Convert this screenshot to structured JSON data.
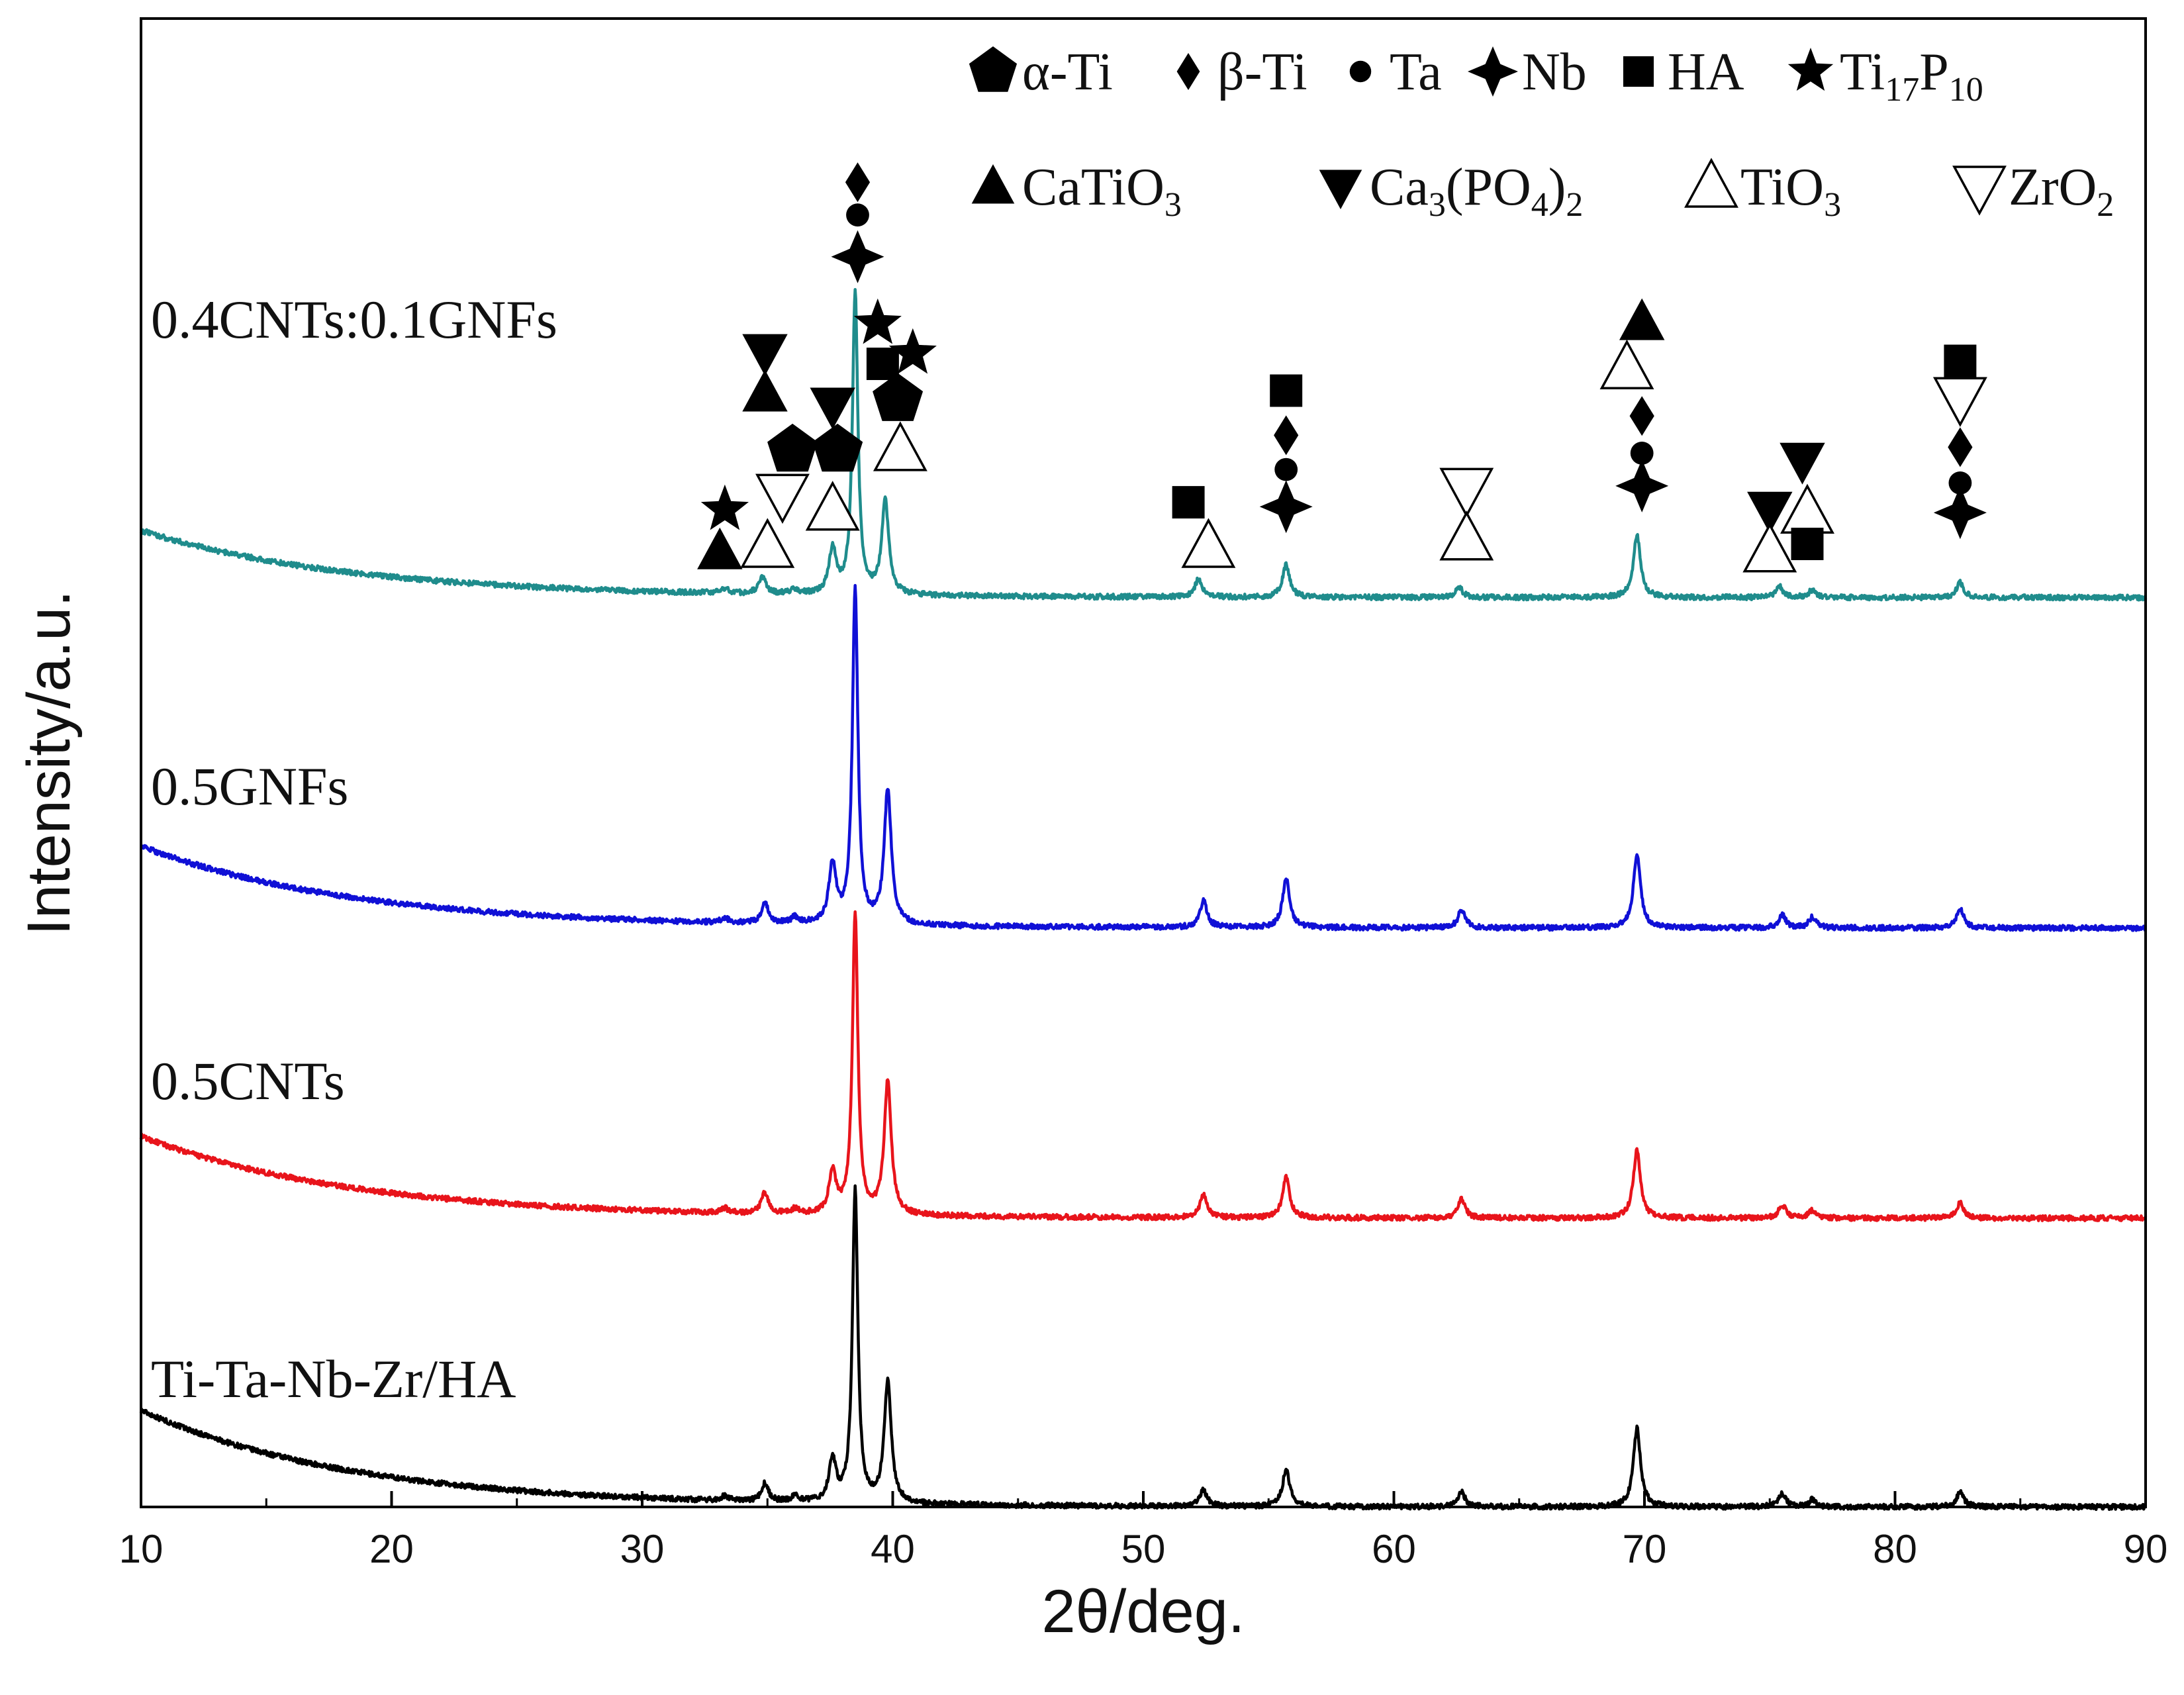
{
  "chart_data": {
    "type": "line",
    "title": "",
    "xlabel": "2θ/deg.",
    "ylabel": "Intensity/a.u.",
    "xlim": [
      10,
      90
    ],
    "ylim": [
      0,
      100
    ],
    "x_ticks": [
      "10",
      "20",
      "30",
      "40",
      "50",
      "60",
      "70",
      "80",
      "90"
    ],
    "y_ticks": [],
    "grid": false,
    "legend_position": "top-right",
    "legend": [
      {
        "symbol": "pentagon-filled",
        "label": "α-Ti"
      },
      {
        "symbol": "diamond-filled",
        "label": "β-Ti"
      },
      {
        "symbol": "circle-filled",
        "label": "Ta"
      },
      {
        "symbol": "four-point-star-filled",
        "label": "Nb"
      },
      {
        "symbol": "square-filled",
        "label": "HA"
      },
      {
        "symbol": "star-filled",
        "label": "Ti17P10"
      },
      {
        "symbol": "triangle-up-filled",
        "label": "CaTiO3"
      },
      {
        "symbol": "triangle-down-filled",
        "label": "Ca3(PO4)2"
      },
      {
        "symbol": "triangle-up-open",
        "label": "TiO3"
      },
      {
        "symbol": "triangle-down-open",
        "label": "ZrO2"
      }
    ],
    "series": [
      {
        "name": "Ti-Ta-Nb-Zr/HA",
        "color": "#000000",
        "baseline": 0,
        "start_excess": 6.5,
        "peaks": [
          [
            33.3,
            0.3
          ],
          [
            34.9,
            1.2
          ],
          [
            36.1,
            0.4
          ],
          [
            37.6,
            2.8
          ],
          [
            38.5,
            21
          ],
          [
            39.8,
            8.1
          ],
          [
            52.4,
            1.1
          ],
          [
            55.7,
            2.5
          ],
          [
            62.7,
            1.0
          ],
          [
            69.7,
            5.3
          ],
          [
            75.5,
            0.9
          ],
          [
            76.7,
            0.5
          ],
          [
            82.6,
            1.0
          ]
        ]
      },
      {
        "name": "0.5CNTs",
        "color": "#e8141b",
        "baseline": 19.4,
        "start_excess": 5.5,
        "peaks": [
          [
            33.3,
            0.3
          ],
          [
            34.9,
            1.4
          ],
          [
            36.1,
            0.3
          ],
          [
            37.6,
            2.8
          ],
          [
            38.5,
            20.3
          ],
          [
            39.8,
            8.9
          ],
          [
            52.4,
            1.5
          ],
          [
            55.7,
            2.7
          ],
          [
            62.7,
            1.3
          ],
          [
            69.7,
            4.6
          ],
          [
            75.5,
            0.9
          ],
          [
            76.7,
            0.5
          ],
          [
            82.6,
            1.0
          ]
        ]
      },
      {
        "name": "0.5GNFs",
        "color": "#1010d6",
        "baseline": 38.9,
        "start_excess": 5.5,
        "peaks": [
          [
            33.3,
            0.3
          ],
          [
            34.9,
            1.3
          ],
          [
            36.1,
            0.4
          ],
          [
            37.6,
            4.0
          ],
          [
            38.5,
            22.6
          ],
          [
            39.8,
            9.0
          ],
          [
            52.4,
            1.8
          ],
          [
            55.7,
            3.3
          ],
          [
            62.7,
            1.2
          ],
          [
            69.7,
            4.9
          ],
          [
            75.5,
            0.9
          ],
          [
            76.7,
            0.7
          ],
          [
            82.6,
            1.3
          ]
        ]
      },
      {
        "name": "0.4CNTs:0.1GNFs",
        "color": "#1f8c8c",
        "baseline": 61.1,
        "start_excess": 4.5,
        "peaks": [
          [
            33.3,
            0.3
          ],
          [
            34.8,
            1.1
          ],
          [
            36.1,
            0.3
          ],
          [
            37.6,
            3.0
          ],
          [
            38.5,
            20.3
          ],
          [
            39.7,
            6.2
          ],
          [
            52.2,
            1.2
          ],
          [
            55.7,
            2.2
          ],
          [
            62.6,
            0.7
          ],
          [
            69.7,
            4.2
          ],
          [
            75.4,
            0.7
          ],
          [
            76.7,
            0.5
          ],
          [
            82.6,
            1.0
          ]
        ]
      }
    ],
    "annotations": [
      {
        "x": 33.1,
        "y": 64.2,
        "marker": "triangle-up-filled"
      },
      {
        "x": 33.3,
        "y": 67.0,
        "marker": "star-filled"
      },
      {
        "x": 35.0,
        "y": 64.5,
        "marker": "triangle-up-open"
      },
      {
        "x": 35.6,
        "y": 68.0,
        "marker": "triangle-down-open"
      },
      {
        "x": 36.0,
        "y": 71.0,
        "marker": "pentagon-filled"
      },
      {
        "x": 34.9,
        "y": 74.8,
        "marker": "triangle-up-filled"
      },
      {
        "x": 34.9,
        "y": 77.6,
        "marker": "triangle-down-filled"
      },
      {
        "x": 37.6,
        "y": 67.0,
        "marker": "triangle-up-open"
      },
      {
        "x": 37.8,
        "y": 71.0,
        "marker": "pentagon-filled"
      },
      {
        "x": 37.6,
        "y": 74.0,
        "marker": "triangle-down-filled"
      },
      {
        "x": 38.6,
        "y": 84.0,
        "marker": "four-point-star-filled"
      },
      {
        "x": 38.6,
        "y": 86.8,
        "marker": "circle-filled"
      },
      {
        "x": 38.6,
        "y": 89.0,
        "marker": "diamond-filled"
      },
      {
        "x": 39.4,
        "y": 79.5,
        "marker": "star-filled"
      },
      {
        "x": 40.8,
        "y": 77.5,
        "marker": "star-filled"
      },
      {
        "x": 39.6,
        "y": 76.8,
        "marker": "square-filled"
      },
      {
        "x": 40.2,
        "y": 74.4,
        "marker": "pentagon-filled"
      },
      {
        "x": 40.3,
        "y": 71.0,
        "marker": "triangle-up-open"
      },
      {
        "x": 51.8,
        "y": 67.5,
        "marker": "square-filled"
      },
      {
        "x": 52.6,
        "y": 64.5,
        "marker": "triangle-up-open"
      },
      {
        "x": 55.7,
        "y": 75.0,
        "marker": "square-filled"
      },
      {
        "x": 55.7,
        "y": 72.0,
        "marker": "diamond-filled"
      },
      {
        "x": 55.7,
        "y": 69.7,
        "marker": "circle-filled"
      },
      {
        "x": 55.7,
        "y": 67.2,
        "marker": "four-point-star-filled"
      },
      {
        "x": 62.9,
        "y": 68.4,
        "marker": "triangle-down-open"
      },
      {
        "x": 62.9,
        "y": 65.0,
        "marker": "triangle-up-open"
      },
      {
        "x": 69.9,
        "y": 79.6,
        "marker": "triangle-up-filled"
      },
      {
        "x": 69.3,
        "y": 76.5,
        "marker": "triangle-up-open"
      },
      {
        "x": 69.9,
        "y": 73.3,
        "marker": "diamond-filled"
      },
      {
        "x": 69.9,
        "y": 70.8,
        "marker": "circle-filled"
      },
      {
        "x": 69.9,
        "y": 68.6,
        "marker": "four-point-star-filled"
      },
      {
        "x": 76.3,
        "y": 70.3,
        "marker": "triangle-down-filled"
      },
      {
        "x": 75.0,
        "y": 67.0,
        "marker": "triangle-down-filled"
      },
      {
        "x": 76.5,
        "y": 66.8,
        "marker": "triangle-up-open"
      },
      {
        "x": 75.0,
        "y": 64.2,
        "marker": "triangle-up-open"
      },
      {
        "x": 76.5,
        "y": 64.7,
        "marker": "square-filled"
      },
      {
        "x": 82.6,
        "y": 77.0,
        "marker": "square-filled"
      },
      {
        "x": 82.6,
        "y": 74.5,
        "marker": "triangle-down-open"
      },
      {
        "x": 82.6,
        "y": 71.2,
        "marker": "diamond-filled"
      },
      {
        "x": 82.6,
        "y": 68.8,
        "marker": "circle-filled"
      },
      {
        "x": 82.6,
        "y": 66.8,
        "marker": "four-point-star-filled"
      }
    ]
  }
}
